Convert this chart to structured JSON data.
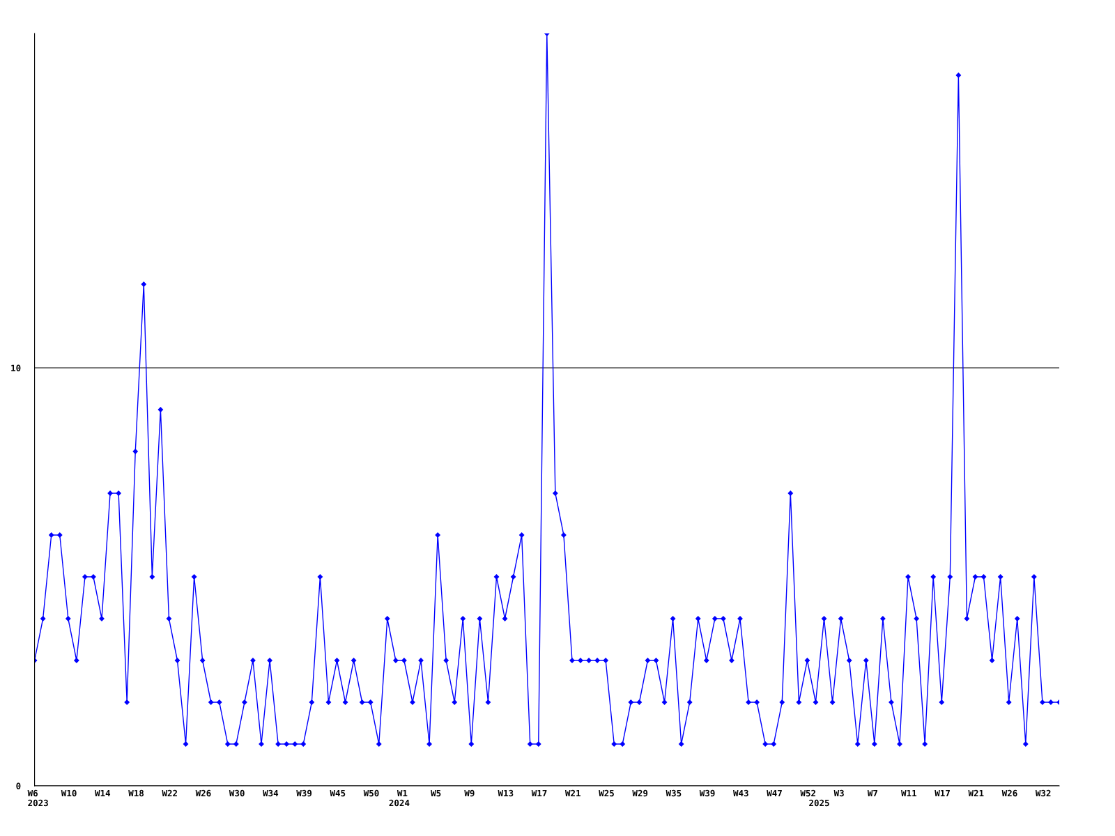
{
  "chart_data": {
    "type": "line",
    "categories": [
      "W6\n2023",
      null,
      null,
      null,
      "W10",
      null,
      null,
      null,
      "W14",
      null,
      null,
      null,
      "W18",
      null,
      null,
      null,
      "W22",
      null,
      null,
      null,
      "W26",
      null,
      null,
      null,
      "W30",
      null,
      null,
      null,
      "W34",
      null,
      null,
      null,
      "W39",
      null,
      null,
      null,
      "W45",
      null,
      null,
      null,
      "W50",
      null,
      null,
      "\n2024",
      "W1",
      null,
      null,
      null,
      "W5",
      null,
      null,
      null,
      "W9",
      null,
      null,
      null,
      "W13",
      null,
      null,
      null,
      "W17",
      null,
      null,
      null,
      "W21",
      null,
      null,
      null,
      "W25",
      null,
      null,
      null,
      "W29",
      null,
      null,
      null,
      "W35",
      null,
      null,
      null,
      "W39",
      null,
      null,
      null,
      "W43",
      null,
      null,
      null,
      "W47",
      null,
      null,
      null,
      "W52",
      "\n2025",
      null,
      null,
      "W3",
      null,
      null,
      null,
      "W7",
      null,
      null,
      null,
      "W11",
      null,
      null,
      null,
      "W17",
      null,
      null,
      null,
      "W21",
      null,
      null,
      null,
      "W26",
      null,
      null,
      null,
      "W32",
      null,
      null
    ],
    "series": [
      {
        "color": "#0000ff",
        "values": [
          3,
          4,
          6,
          6,
          4,
          3,
          5,
          5,
          4,
          7,
          7,
          2,
          8,
          12,
          5,
          9,
          4,
          3,
          1,
          5,
          3,
          2,
          2,
          1,
          1,
          2,
          3,
          1,
          3,
          1,
          1,
          1,
          1,
          2,
          5,
          2,
          3,
          2,
          3,
          2,
          2,
          1,
          4,
          3,
          3,
          2,
          3,
          1,
          6,
          3,
          2,
          4,
          1,
          4,
          2,
          5,
          4,
          5,
          6,
          1,
          1,
          18,
          7,
          6,
          3,
          3,
          3,
          3,
          3,
          1,
          1,
          2,
          2,
          3,
          3,
          2,
          4,
          1,
          2,
          4,
          3,
          4,
          4,
          3,
          4,
          2,
          2,
          1,
          1,
          2,
          7,
          2,
          3,
          2,
          4,
          2,
          4,
          3,
          1,
          3,
          1,
          4,
          2,
          1,
          5,
          4,
          1,
          5,
          2,
          5,
          17,
          4,
          5,
          5,
          3,
          5,
          2,
          4,
          1,
          5,
          2,
          2,
          2
        ]
      }
    ],
    "ylim": [
      0,
      18
    ],
    "yticks": [
      0,
      10
    ],
    "grid": "y",
    "marker": "diamond",
    "line_style": "solid"
  }
}
